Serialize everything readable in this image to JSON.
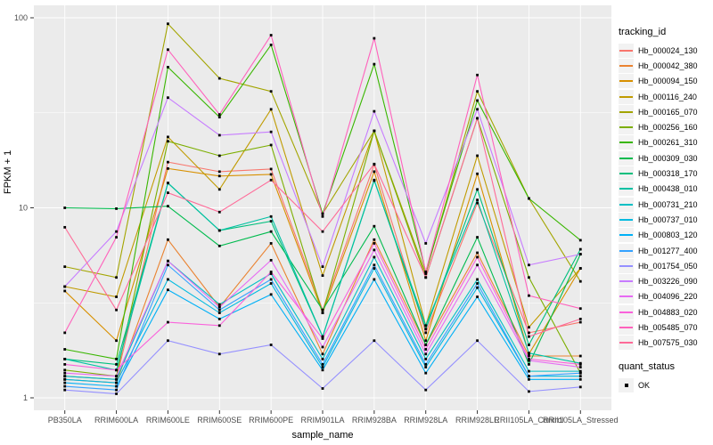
{
  "chart_data": {
    "type": "line",
    "title": "",
    "xlabel": "sample_name",
    "ylabel": "FPKM + 1",
    "y_scale": "log10",
    "ylim": [
      1,
      100
    ],
    "y_ticks": [
      1,
      10,
      100
    ],
    "y_minor_ticks": [
      3.162,
      31.62
    ],
    "grid": "white gridlines on gray panel",
    "legend_position": "right",
    "legend_title": "tracking_id",
    "point_marker": "black-square",
    "quant_legend": {
      "title": "quant_status",
      "items": [
        "OK"
      ]
    },
    "x_categories": [
      "PB350LA",
      "RRIM600LA",
      "RRIM600LE",
      "RRIM600SE",
      "RRIM600PE",
      "RRIM901LA",
      "RRIM928BA",
      "RRIM928LA",
      "RRIM928LE",
      "RRII105LA_Control",
      "RRII105LA_Stressed"
    ],
    "series": [
      {
        "name": "Hb_000024_130",
        "color": "#F8766D",
        "values": [
          1.3,
          1.25,
          17.4,
          15.5,
          16,
          2.9,
          16.9,
          2.2,
          10.6,
          2.2,
          2.5
        ]
      },
      {
        "name": "Hb_000042_380",
        "color": "#EA8331",
        "values": [
          1.25,
          1.2,
          6.8,
          3.0,
          6.5,
          1.7,
          6.8,
          1.9,
          5.8,
          1.66,
          1.66
        ]
      },
      {
        "name": "Hb_000094_150",
        "color": "#D89000",
        "values": [
          3.65,
          2.0,
          16.1,
          14.7,
          15,
          2.8,
          15.5,
          2.0,
          15.1,
          1.7,
          4.8
        ]
      },
      {
        "name": "Hb_000116_240",
        "color": "#C09B00",
        "values": [
          3.85,
          3.4,
          23.6,
          12.5,
          33,
          4.4,
          25.4,
          2.4,
          18.8,
          2.35,
          4.8
        ]
      },
      {
        "name": "Hb_000165_070",
        "color": "#A3A500",
        "values": [
          4.9,
          4.3,
          93,
          48,
          41,
          9.3,
          25.4,
          4.5,
          41,
          11.2,
          4.1
        ]
      },
      {
        "name": "Hb_000256_160",
        "color": "#7CAE00",
        "values": [
          1.4,
          1.3,
          22.4,
          18.8,
          21.4,
          2.8,
          25.4,
          4.3,
          29.6,
          4.3,
          1.35
        ]
      },
      {
        "name": "Hb_000261_310",
        "color": "#39B600",
        "values": [
          1.8,
          1.6,
          55,
          30,
          72,
          9.3,
          57,
          4.6,
          36.7,
          11.2,
          6.75
        ]
      },
      {
        "name": "Hb_000309_030",
        "color": "#00BB4E",
        "values": [
          10,
          9.9,
          10.2,
          6.3,
          7.5,
          2.9,
          8.0,
          1.9,
          7.0,
          1.5,
          5.7
        ]
      },
      {
        "name": "Hb_000318_170",
        "color": "#00BF7D",
        "values": [
          1.6,
          1.5,
          13.5,
          7.6,
          8.5,
          2.1,
          14,
          2.3,
          12.5,
          1.9,
          6.05
        ]
      },
      {
        "name": "Hb_000438_010",
        "color": "#00C1A3",
        "values": [
          1.6,
          1.4,
          13.5,
          7.6,
          9.0,
          2.1,
          13.9,
          2.4,
          11,
          1.72,
          1.52
        ]
      },
      {
        "name": "Hb_000731_210",
        "color": "#00BFC4",
        "values": [
          1.3,
          1.25,
          5.25,
          3.1,
          4.5,
          1.6,
          5.5,
          1.6,
          4.2,
          1.38,
          1.38
        ]
      },
      {
        "name": "Hb_000737_010",
        "color": "#00BAE0",
        "values": [
          1.25,
          1.2,
          4.2,
          2.8,
          4.0,
          1.45,
          4.8,
          1.45,
          3.8,
          1.3,
          1.3
        ]
      },
      {
        "name": "Hb_000803_120",
        "color": "#00B0F6",
        "values": [
          1.2,
          1.15,
          3.7,
          2.6,
          3.5,
          1.4,
          4.2,
          1.35,
          3.4,
          1.25,
          1.25
        ]
      },
      {
        "name": "Hb_001277_400",
        "color": "#35A2FF",
        "values": [
          1.15,
          1.1,
          5.0,
          2.9,
          4.2,
          1.5,
          5.0,
          1.5,
          4.0,
          1.3,
          1.35
        ]
      },
      {
        "name": "Hb_001754_050",
        "color": "#9590FF",
        "values": [
          1.1,
          1.05,
          2.0,
          1.7,
          1.9,
          1.12,
          2.0,
          1.1,
          2.0,
          1.08,
          1.14
        ]
      },
      {
        "name": "Hb_003226_090",
        "color": "#C77CFF",
        "values": [
          3.85,
          7.5,
          38,
          24.1,
          25.1,
          4.9,
          32.2,
          6.5,
          33,
          5.0,
          5.7
        ]
      },
      {
        "name": "Hb_004096_220",
        "color": "#E76BF3",
        "values": [
          1.35,
          1.3,
          5.25,
          3.0,
          5.3,
          1.85,
          6.0,
          1.7,
          5.0,
          1.57,
          1.45
        ]
      },
      {
        "name": "Hb_004883_020",
        "color": "#FA62DB",
        "values": [
          1.5,
          1.4,
          2.5,
          2.4,
          4.6,
          2.05,
          6.5,
          1.8,
          5.5,
          1.6,
          1.5
        ]
      },
      {
        "name": "Hb_005485_070",
        "color": "#FF62BC",
        "values": [
          2.2,
          7.0,
          68,
          31,
          81,
          9.0,
          78,
          4.6,
          50,
          3.45,
          2.95
        ]
      },
      {
        "name": "Hb_007575_030",
        "color": "#FF6A98",
        "values": [
          7.9,
          2.9,
          12,
          9.5,
          14,
          7.5,
          17,
          4.3,
          29.6,
          2.1,
          2.6
        ]
      }
    ]
  },
  "colors": {
    "panel_bg": "#EBEBEB",
    "grid": "#FFFFFF",
    "tick_text": "#4D4D4D",
    "axis_tick": "#333333",
    "legend_key_bg": "#F2F2F2",
    "point": "#000000"
  }
}
